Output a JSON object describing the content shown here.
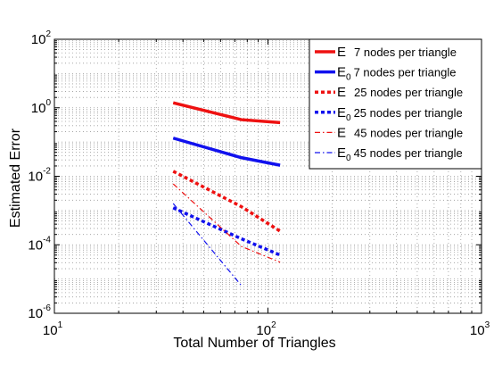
{
  "chart_data": {
    "type": "line",
    "title": "",
    "xlabel": "Total Number of Triangles",
    "ylabel": "Estimated Error",
    "x_scale": "log",
    "y_scale": "log",
    "xlim": [
      10,
      1000
    ],
    "ylim": [
      1e-06,
      100
    ],
    "x_tick_labels": [
      {
        "base": "10",
        "exp": "1"
      },
      {
        "base": "10",
        "exp": "2"
      },
      {
        "base": "10",
        "exp": "3"
      }
    ],
    "y_tick_labels": [
      {
        "base": "10",
        "exp": "-6"
      },
      {
        "base": "10",
        "exp": "-4"
      },
      {
        "base": "10",
        "exp": "-2"
      },
      {
        "base": "10",
        "exp": "0"
      },
      {
        "base": "10",
        "exp": "2"
      }
    ],
    "grid": true,
    "legend_position": "top-right",
    "series": [
      {
        "name": "E 7 nodes per triangle",
        "label_main": "E",
        "label_sub": "",
        "label_rest": "7 nodes per triangle",
        "color": "#ee1111",
        "style": "solid",
        "weight": "thick",
        "x": [
          36,
          75,
          114
        ],
        "y": [
          1.4,
          0.45,
          0.37
        ]
      },
      {
        "name": "E0 7 nodes per triangle",
        "label_main": "E",
        "label_sub": "0",
        "label_rest": "7 nodes per triangle",
        "color": "#1111ee",
        "style": "solid",
        "weight": "thick",
        "x": [
          36,
          75,
          114
        ],
        "y": [
          0.13,
          0.035,
          0.021
        ]
      },
      {
        "name": "E 25 nodes per triangle",
        "label_main": "E",
        "label_sub": "",
        "label_rest": "25 nodes per triangle",
        "color": "#ee1111",
        "style": "dotted",
        "weight": "thick",
        "x": [
          36,
          75,
          114
        ],
        "y": [
          0.014,
          0.0013,
          0.00025
        ]
      },
      {
        "name": "E0 25 nodes per triangle",
        "label_main": "E",
        "label_sub": "0",
        "label_rest": "25 nodes per triangle",
        "color": "#1111ee",
        "style": "dotted",
        "weight": "thick",
        "x": [
          36,
          75,
          114
        ],
        "y": [
          0.0012,
          0.00015,
          5e-05
        ]
      },
      {
        "name": "E 45 nodes per triangle",
        "label_main": "E",
        "label_sub": "",
        "label_rest": "45 nodes per triangle",
        "color": "#ee1111",
        "style": "dashdot",
        "weight": "thin",
        "x": [
          36,
          75,
          114
        ],
        "y": [
          0.006,
          9e-05,
          3.1e-05
        ]
      },
      {
        "name": "E0 45 nodes per triangle",
        "label_main": "E",
        "label_sub": "0",
        "label_rest": "45 nodes per triangle",
        "color": "#1111ee",
        "style": "dashdot",
        "weight": "thin",
        "x": [
          36,
          75
        ],
        "y": [
          0.0016,
          6.5e-06
        ]
      }
    ]
  }
}
